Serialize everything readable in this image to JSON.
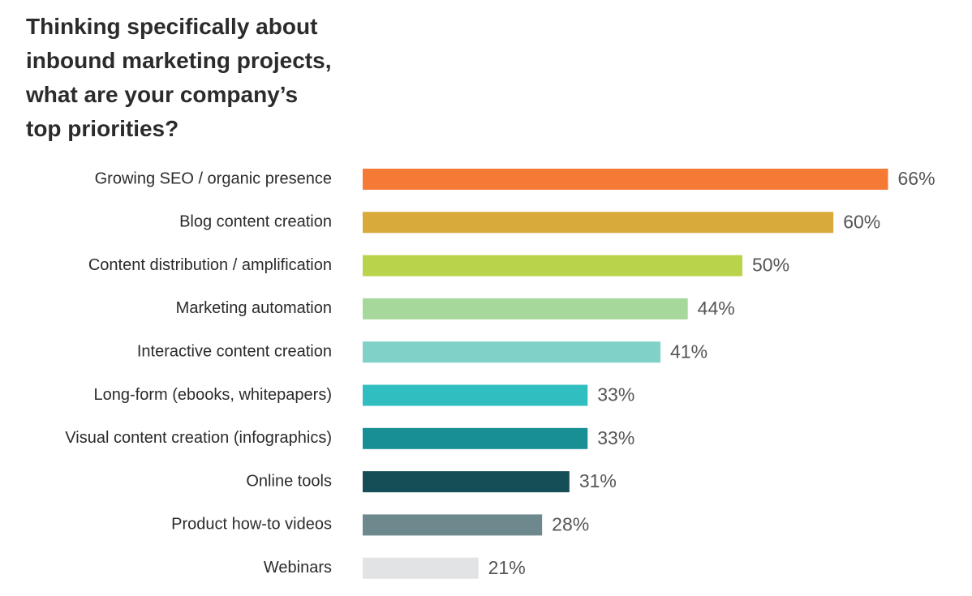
{
  "chart_data": {
    "type": "bar",
    "orientation": "horizontal",
    "title": "Thinking specifically about inbound marketing projects, what are your company’s top priorities?",
    "categories": [
      "Growing SEO / organic presence",
      "Blog content creation",
      "Content distribution / amplification",
      "Marketing automation",
      "Interactive content creation",
      "Long-form (ebooks, whitepapers)",
      "Visual content creation (infographics)",
      "Online tools",
      "Product how-to videos",
      "Webinars"
    ],
    "values": [
      66,
      60,
      50,
      44,
      41,
      33,
      33,
      31,
      28,
      21
    ],
    "value_labels": [
      "66%",
      "60%",
      "50%",
      "44%",
      "41%",
      "33%",
      "33%",
      "31%",
      "28%",
      "21%"
    ],
    "colors": [
      "#f47a36",
      "#d8aa3b",
      "#b9d44b",
      "#a7d89b",
      "#80d1c7",
      "#30bec0",
      "#178f94",
      "#154e57",
      "#6d898d",
      "#e2e3e4"
    ]
  }
}
